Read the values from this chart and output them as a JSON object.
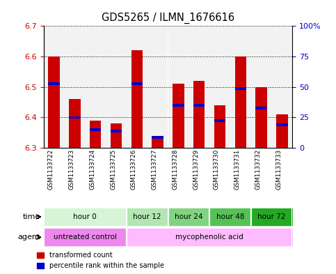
{
  "title": "GDS5265 / ILMN_1676616",
  "samples": [
    "GSM1133722",
    "GSM1133723",
    "GSM1133724",
    "GSM1133725",
    "GSM1133726",
    "GSM1133727",
    "GSM1133728",
    "GSM1133729",
    "GSM1133730",
    "GSM1133731",
    "GSM1133732",
    "GSM1133733"
  ],
  "bar_values": [
    6.6,
    6.46,
    6.39,
    6.38,
    6.62,
    6.34,
    6.51,
    6.52,
    6.44,
    6.6,
    6.5,
    6.41
  ],
  "percentile_values": [
    6.51,
    6.4,
    6.36,
    6.355,
    6.51,
    6.335,
    6.44,
    6.44,
    6.39,
    6.495,
    6.43,
    6.375
  ],
  "bar_bottom": 6.3,
  "ymin": 6.3,
  "ymax": 6.7,
  "bar_color": "#cc0000",
  "percentile_color": "#0000cc",
  "bg_color": "#ffffff",
  "plot_bg": "#ffffff",
  "time_groups": [
    {
      "label": "hour 0",
      "start": 0,
      "end": 4
    },
    {
      "label": "hour 12",
      "start": 4,
      "end": 6
    },
    {
      "label": "hour 24",
      "start": 6,
      "end": 8
    },
    {
      "label": "hour 48",
      "start": 8,
      "end": 10
    },
    {
      "label": "hour 72",
      "start": 10,
      "end": 12
    }
  ],
  "time_colors": [
    "#d6f5d6",
    "#b3e6b3",
    "#80d480",
    "#55c255",
    "#22aa22"
  ],
  "agent_groups": [
    {
      "label": "untreated control",
      "start": 0,
      "end": 4
    },
    {
      "label": "mycophenolic acid",
      "start": 4,
      "end": 12
    }
  ],
  "agent_colors": [
    "#ee88ee",
    "#ffbbff"
  ],
  "right_yticks": [
    0,
    25,
    50,
    75,
    100
  ],
  "right_yticklabels": [
    "0",
    "25",
    "50",
    "75",
    "100%"
  ],
  "left_yticks": [
    6.3,
    6.4,
    6.5,
    6.6,
    6.7
  ],
  "left_yticklabels": [
    "6.3",
    "6.4",
    "6.5",
    "6.6",
    "6.7"
  ]
}
